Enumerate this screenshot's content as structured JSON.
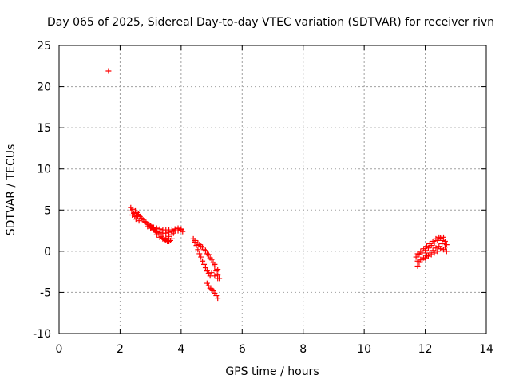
{
  "chart_data": {
    "type": "scatter",
    "title": "Day 065 of 2025, Sidereal Day-to-day VTEC variation (SDTVAR) for receiver rivn",
    "xlabel": "GPS time / hours",
    "ylabel": "SDTVAR / TECUs",
    "xlim": [
      0,
      14
    ],
    "ylim": [
      -10,
      25
    ],
    "xticks": [
      0,
      2,
      4,
      6,
      8,
      10,
      12,
      14
    ],
    "yticks": [
      -10,
      -5,
      0,
      5,
      10,
      15,
      20,
      25
    ],
    "grid": true,
    "legend": "none",
    "marker": "+",
    "color": "#ff0000",
    "series": [
      {
        "points": [
          [
            1.62,
            21.9
          ],
          [
            2.35,
            5.3
          ],
          [
            2.38,
            4.9
          ],
          [
            2.4,
            4.4
          ],
          [
            2.42,
            5.1
          ],
          [
            2.45,
            4.6
          ],
          [
            2.48,
            4.2
          ],
          [
            2.5,
            4.9
          ],
          [
            2.52,
            3.9
          ],
          [
            2.55,
            4.7
          ],
          [
            2.58,
            4.3
          ],
          [
            2.6,
            4.5
          ],
          [
            2.62,
            3.7
          ],
          [
            2.65,
            4.2
          ],
          [
            2.7,
            4.0
          ],
          [
            2.75,
            3.8
          ],
          [
            2.8,
            3.6
          ],
          [
            2.85,
            3.5
          ],
          [
            2.9,
            3.3
          ],
          [
            2.95,
            3.2
          ],
          [
            3.0,
            3.0
          ],
          [
            3.05,
            2.9
          ],
          [
            3.1,
            2.7
          ],
          [
            3.15,
            2.5
          ],
          [
            3.2,
            2.3
          ],
          [
            3.25,
            2.2
          ],
          [
            3.3,
            2.0
          ],
          [
            3.35,
            1.8
          ],
          [
            3.4,
            1.6
          ],
          [
            3.45,
            1.4
          ],
          [
            3.5,
            1.3
          ],
          [
            3.55,
            1.2
          ],
          [
            3.6,
            1.2
          ],
          [
            3.65,
            1.3
          ],
          [
            3.7,
            1.5
          ],
          [
            2.9,
            3.0
          ],
          [
            3.0,
            2.8
          ],
          [
            3.1,
            2.6
          ],
          [
            3.2,
            2.4
          ],
          [
            3.3,
            2.3
          ],
          [
            3.4,
            2.2
          ],
          [
            3.5,
            2.2
          ],
          [
            3.6,
            2.3
          ],
          [
            3.7,
            2.4
          ],
          [
            3.8,
            2.5
          ],
          [
            3.9,
            2.5
          ],
          [
            4.0,
            2.6
          ],
          [
            4.05,
            2.4
          ],
          [
            3.0,
            3.1
          ],
          [
            3.1,
            2.9
          ],
          [
            3.2,
            2.8
          ],
          [
            3.3,
            2.7
          ],
          [
            3.4,
            2.6
          ],
          [
            3.5,
            2.6
          ],
          [
            3.6,
            2.6
          ],
          [
            3.7,
            2.6
          ],
          [
            3.8,
            2.7
          ],
          [
            3.9,
            2.8
          ],
          [
            4.0,
            2.7
          ],
          [
            3.2,
            2.0
          ],
          [
            3.3,
            1.7
          ],
          [
            3.4,
            1.5
          ],
          [
            3.5,
            1.6
          ],
          [
            3.6,
            1.8
          ],
          [
            3.7,
            2.0
          ],
          [
            3.75,
            2.2
          ],
          [
            4.4,
            1.5
          ],
          [
            4.45,
            1.1
          ],
          [
            4.5,
            0.7
          ],
          [
            4.55,
            0.2
          ],
          [
            4.6,
            -0.3
          ],
          [
            4.65,
            -0.7
          ],
          [
            4.7,
            -1.2
          ],
          [
            4.75,
            -1.6
          ],
          [
            4.8,
            -2.0
          ],
          [
            4.85,
            -2.4
          ],
          [
            4.9,
            -2.7
          ],
          [
            4.95,
            -3.0
          ],
          [
            4.45,
            1.3
          ],
          [
            4.55,
            1.0
          ],
          [
            4.65,
            0.6
          ],
          [
            4.75,
            0.2
          ],
          [
            4.85,
            -0.3
          ],
          [
            4.95,
            -0.8
          ],
          [
            5.05,
            -1.4
          ],
          [
            5.1,
            -1.9
          ],
          [
            5.15,
            -2.4
          ],
          [
            5.2,
            -2.9
          ],
          [
            5.25,
            -3.3
          ],
          [
            4.6,
            0.8
          ],
          [
            4.7,
            0.5
          ],
          [
            4.8,
            0.1
          ],
          [
            4.9,
            -0.4
          ],
          [
            5.0,
            -1.0
          ],
          [
            5.1,
            -1.6
          ],
          [
            5.2,
            -2.2
          ],
          [
            5.0,
            -2.6
          ],
          [
            5.1,
            -3.0
          ],
          [
            5.2,
            -3.3
          ],
          [
            4.85,
            -3.9
          ],
          [
            4.9,
            -4.2
          ],
          [
            4.95,
            -4.5
          ],
          [
            5.0,
            -4.6
          ],
          [
            5.05,
            -4.8
          ],
          [
            5.1,
            -5.1
          ],
          [
            5.15,
            -5.4
          ],
          [
            5.2,
            -5.7
          ],
          [
            11.7,
            -0.7
          ],
          [
            11.75,
            -1.2
          ],
          [
            11.8,
            -0.4
          ],
          [
            11.85,
            -1.0
          ],
          [
            11.9,
            -0.2
          ],
          [
            11.95,
            -0.8
          ],
          [
            12.0,
            0.1
          ],
          [
            12.05,
            -0.5
          ],
          [
            12.1,
            0.4
          ],
          [
            12.15,
            -0.2
          ],
          [
            12.2,
            0.7
          ],
          [
            12.25,
            0.1
          ],
          [
            12.3,
            1.0
          ],
          [
            12.35,
            0.4
          ],
          [
            12.4,
            1.3
          ],
          [
            12.45,
            0.6
          ],
          [
            12.5,
            1.6
          ],
          [
            12.55,
            0.9
          ],
          [
            12.6,
            1.7
          ],
          [
            12.65,
            1.2
          ],
          [
            12.7,
            0.8
          ],
          [
            12.6,
            0.2
          ],
          [
            12.5,
            0.3
          ],
          [
            12.4,
            0.0
          ],
          [
            12.3,
            -0.2
          ],
          [
            12.2,
            -0.4
          ],
          [
            12.1,
            -0.6
          ],
          [
            12.0,
            -0.8
          ],
          [
            11.9,
            -1.0
          ],
          [
            11.8,
            -1.4
          ],
          [
            11.75,
            -1.8
          ],
          [
            12.7,
            0.0
          ],
          [
            12.65,
            0.5
          ],
          [
            12.55,
            1.3
          ],
          [
            12.45,
            1.7
          ],
          [
            12.35,
            1.5
          ],
          [
            12.25,
            1.2
          ],
          [
            12.15,
            0.9
          ],
          [
            12.05,
            0.6
          ],
          [
            11.95,
            0.3
          ],
          [
            11.85,
            0.0
          ],
          [
            11.75,
            -0.3
          ]
        ]
      }
    ]
  }
}
